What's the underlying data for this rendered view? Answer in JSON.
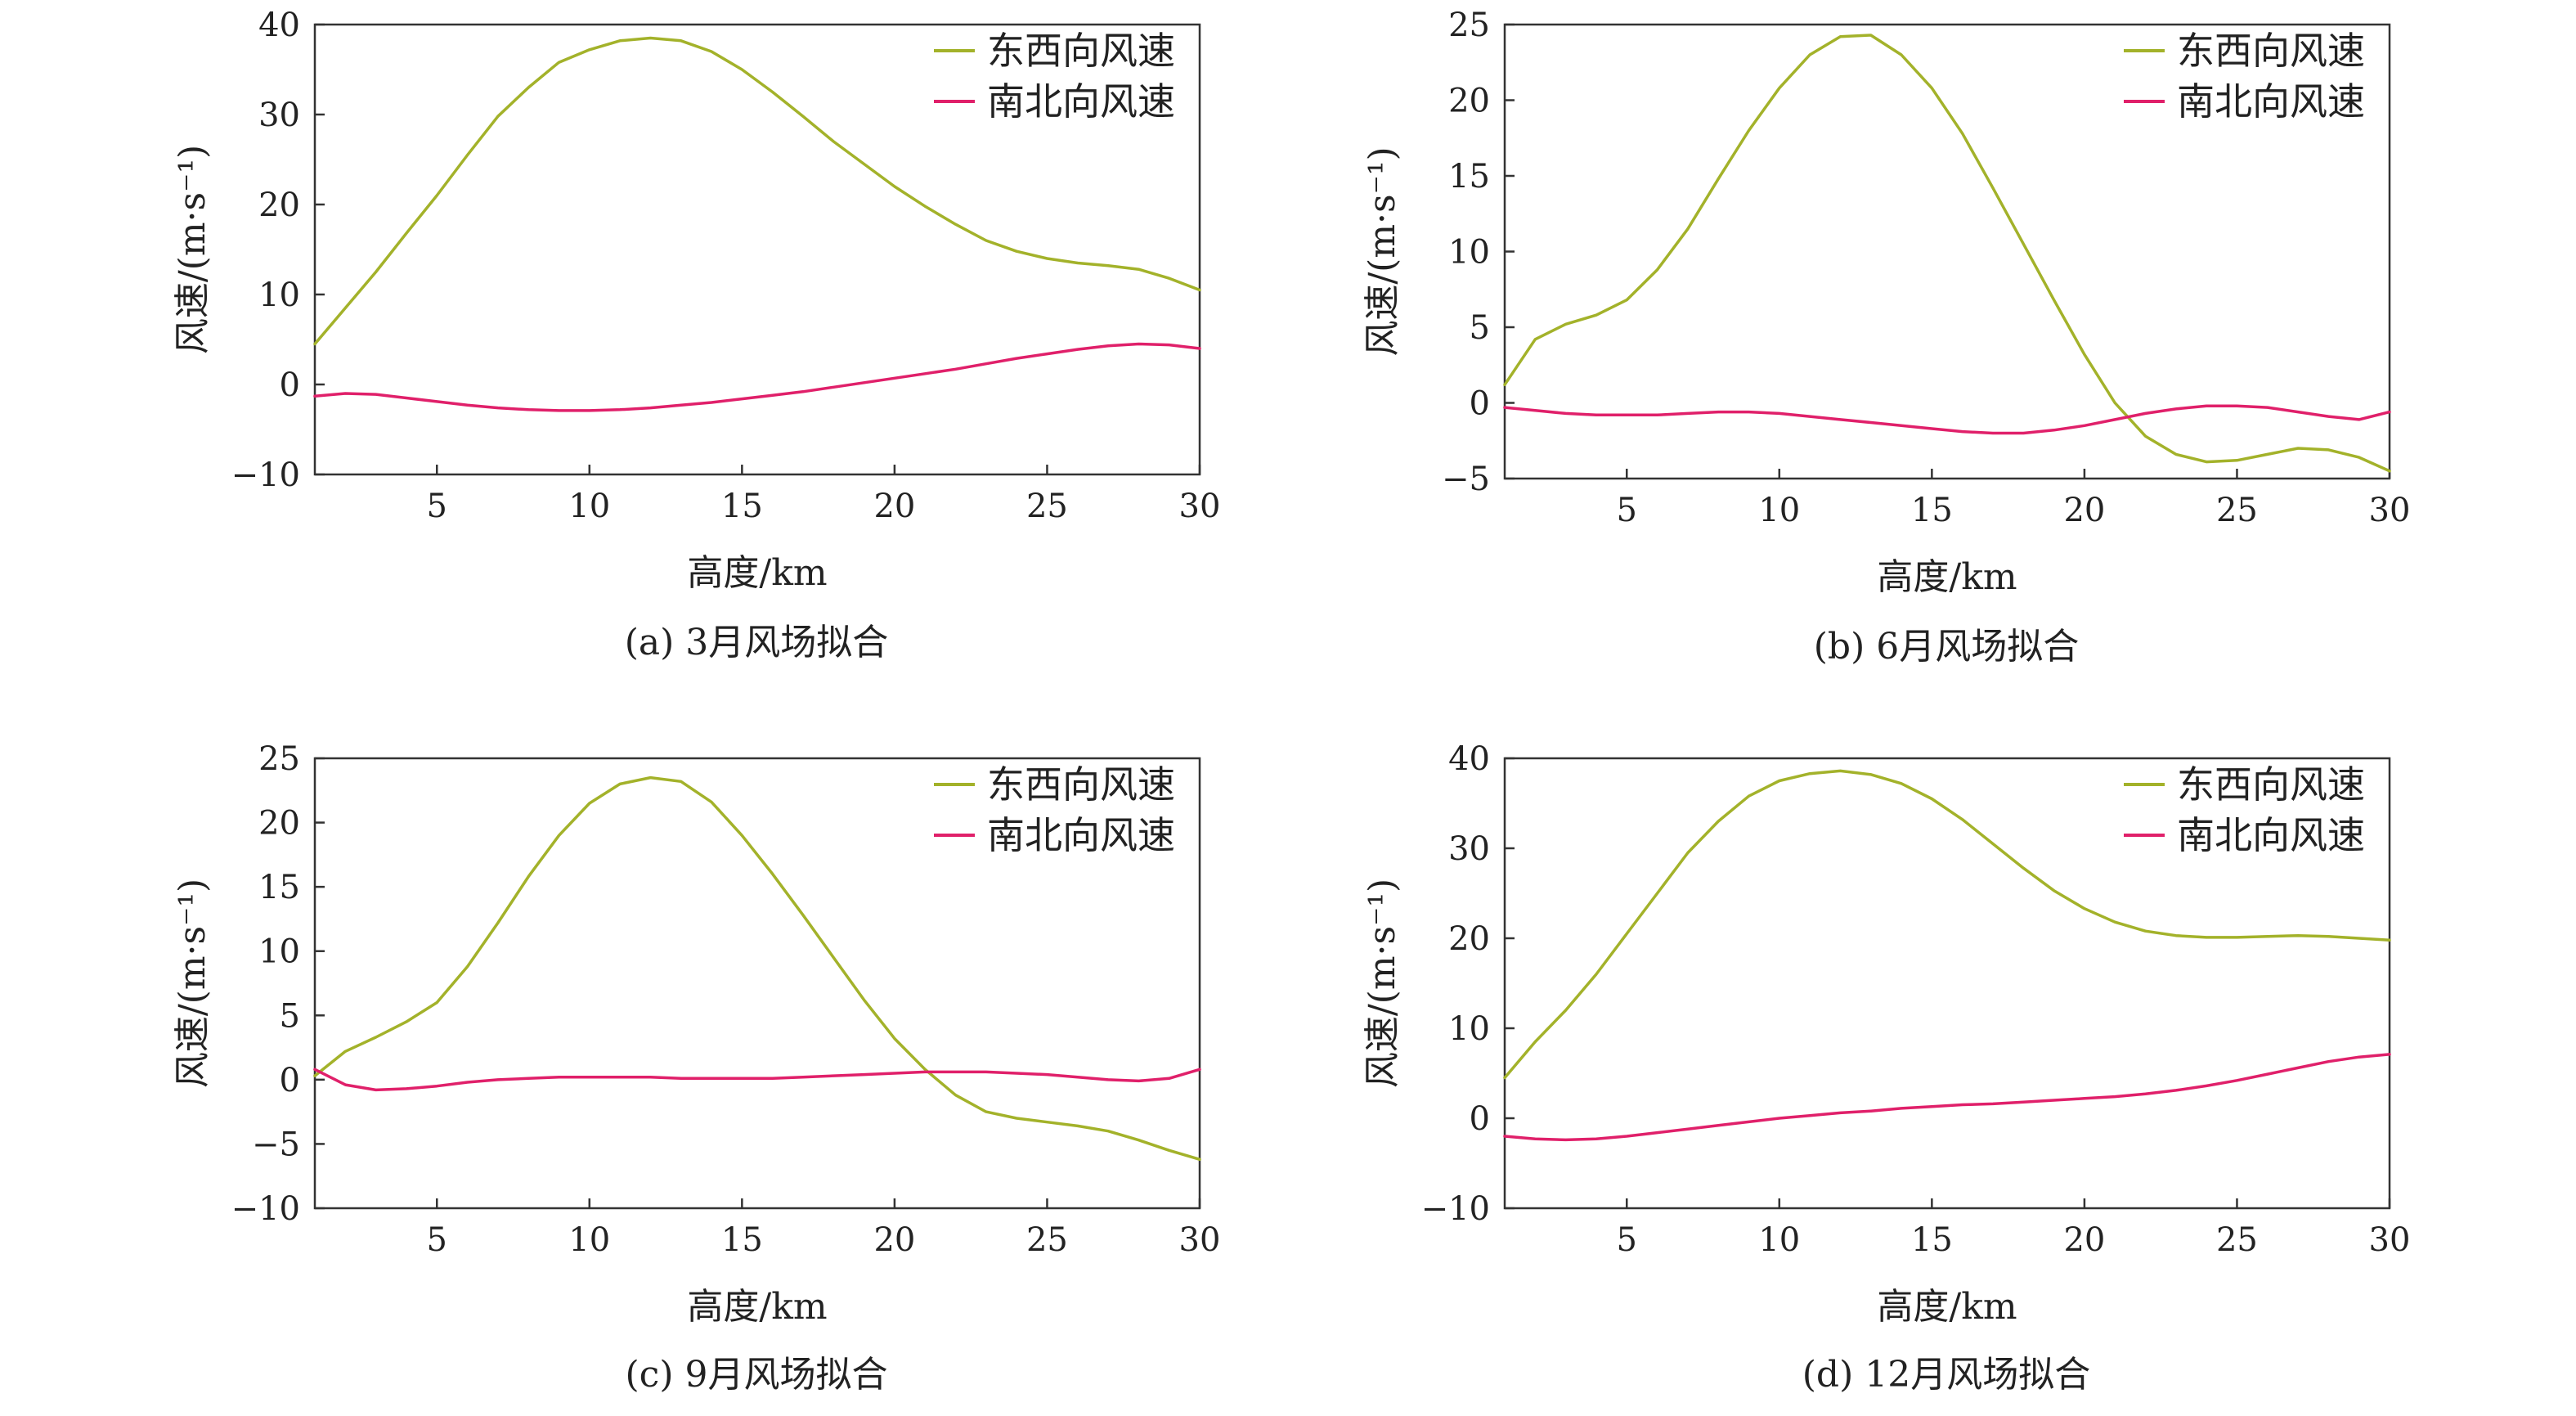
{
  "colors": {
    "ew": "#a3b22a",
    "ns": "#e0206a"
  },
  "chart_data": [
    {
      "type": "line",
      "caption": "(a) 3月风场拟合",
      "xlabel": "高度/km",
      "ylabel": "风速/(m·s⁻¹)",
      "xlim": [
        1,
        30
      ],
      "ylim": [
        -10,
        40
      ],
      "xticks": [
        5,
        10,
        15,
        20,
        25,
        30
      ],
      "yticks": [
        -10,
        0,
        10,
        20,
        30,
        40
      ],
      "legend_position": "top-right",
      "series": [
        {
          "name": "东西向风速",
          "color_key": "ew",
          "x": [
            1,
            2,
            3,
            4,
            5,
            6,
            7,
            8,
            9,
            10,
            11,
            12,
            13,
            14,
            15,
            16,
            17,
            18,
            19,
            20,
            21,
            22,
            23,
            24,
            25,
            26,
            27,
            28,
            29,
            30
          ],
          "y": [
            4.5,
            8.5,
            12.5,
            16.8,
            21,
            25.5,
            29.8,
            33,
            35.8,
            37.2,
            38.2,
            38.5,
            38.2,
            37,
            35,
            32.5,
            29.8,
            27,
            24.5,
            22,
            19.8,
            17.8,
            16,
            14.8,
            14,
            13.5,
            13.2,
            12.8,
            11.8,
            10.5
          ]
        },
        {
          "name": "南北向风速",
          "color_key": "ns",
          "x": [
            1,
            2,
            3,
            4,
            5,
            6,
            7,
            8,
            9,
            10,
            11,
            12,
            13,
            14,
            15,
            16,
            17,
            18,
            19,
            20,
            21,
            22,
            23,
            24,
            25,
            26,
            27,
            28,
            29,
            30
          ],
          "y": [
            -1.3,
            -1,
            -1.1,
            -1.5,
            -1.9,
            -2.3,
            -2.6,
            -2.8,
            -2.9,
            -2.9,
            -2.8,
            -2.6,
            -2.3,
            -2,
            -1.6,
            -1.2,
            -0.8,
            -0.3,
            0.2,
            0.7,
            1.2,
            1.7,
            2.3,
            2.9,
            3.4,
            3.9,
            4.3,
            4.5,
            4.4,
            4
          ]
        }
      ]
    },
    {
      "type": "line",
      "caption": "(b) 6月风场拟合",
      "xlabel": "高度/km",
      "ylabel": "风速/(m·s⁻¹)",
      "xlim": [
        1,
        30
      ],
      "ylim": [
        -5,
        25
      ],
      "xticks": [
        5,
        10,
        15,
        20,
        25,
        30
      ],
      "yticks": [
        -5,
        0,
        5,
        10,
        15,
        20,
        25
      ],
      "legend_position": "top-right",
      "series": [
        {
          "name": "东西向风速",
          "color_key": "ew",
          "x": [
            1,
            2,
            3,
            4,
            5,
            6,
            7,
            8,
            9,
            10,
            11,
            12,
            13,
            14,
            15,
            16,
            17,
            18,
            19,
            20,
            21,
            22,
            23,
            24,
            25,
            26,
            27,
            28,
            29,
            30
          ],
          "y": [
            1.2,
            4.2,
            5.2,
            5.8,
            6.8,
            8.8,
            11.5,
            14.8,
            18,
            20.8,
            23,
            24.2,
            24.3,
            23,
            20.8,
            17.8,
            14.2,
            10.5,
            6.8,
            3.2,
            0,
            -2.2,
            -3.4,
            -3.9,
            -3.8,
            -3.4,
            -3,
            -3.1,
            -3.6,
            -4.5
          ]
        },
        {
          "name": "南北向风速",
          "color_key": "ns",
          "x": [
            1,
            2,
            3,
            4,
            5,
            6,
            7,
            8,
            9,
            10,
            11,
            12,
            13,
            14,
            15,
            16,
            17,
            18,
            19,
            20,
            21,
            22,
            23,
            24,
            25,
            26,
            27,
            28,
            29,
            30
          ],
          "y": [
            -0.3,
            -0.5,
            -0.7,
            -0.8,
            -0.8,
            -0.8,
            -0.7,
            -0.6,
            -0.6,
            -0.7,
            -0.9,
            -1.1,
            -1.3,
            -1.5,
            -1.7,
            -1.9,
            -2,
            -2,
            -1.8,
            -1.5,
            -1.1,
            -0.7,
            -0.4,
            -0.2,
            -0.2,
            -0.3,
            -0.6,
            -0.9,
            -1.1,
            -0.6
          ]
        }
      ]
    },
    {
      "type": "line",
      "caption": "(c) 9月风场拟合",
      "xlabel": "高度/km",
      "ylabel": "风速/(m·s⁻¹)",
      "xlim": [
        1,
        30
      ],
      "ylim": [
        -10,
        25
      ],
      "xticks": [
        5,
        10,
        15,
        20,
        25,
        30
      ],
      "yticks": [
        -10,
        -5,
        0,
        5,
        10,
        15,
        20,
        25
      ],
      "legend_position": "top-right",
      "series": [
        {
          "name": "东西向风速",
          "color_key": "ew",
          "x": [
            1,
            2,
            3,
            4,
            5,
            6,
            7,
            8,
            9,
            10,
            11,
            12,
            13,
            14,
            15,
            16,
            17,
            18,
            19,
            20,
            21,
            22,
            23,
            24,
            25,
            26,
            27,
            28,
            29,
            30
          ],
          "y": [
            0.3,
            2.2,
            3.3,
            4.5,
            6,
            8.8,
            12.2,
            15.8,
            19,
            21.5,
            23,
            23.5,
            23.2,
            21.6,
            19,
            16,
            12.8,
            9.5,
            6.2,
            3.2,
            0.8,
            -1.2,
            -2.5,
            -3,
            -3.3,
            -3.6,
            -4,
            -4.7,
            -5.5,
            -6.2
          ]
        },
        {
          "name": "南北向风速",
          "color_key": "ns",
          "x": [
            1,
            2,
            3,
            4,
            5,
            6,
            7,
            8,
            9,
            10,
            11,
            12,
            13,
            14,
            15,
            16,
            17,
            18,
            19,
            20,
            21,
            22,
            23,
            24,
            25,
            26,
            27,
            28,
            29,
            30
          ],
          "y": [
            0.8,
            -0.4,
            -0.8,
            -0.7,
            -0.5,
            -0.2,
            0,
            0.1,
            0.2,
            0.2,
            0.2,
            0.2,
            0.1,
            0.1,
            0.1,
            0.1,
            0.2,
            0.3,
            0.4,
            0.5,
            0.6,
            0.6,
            0.6,
            0.5,
            0.4,
            0.2,
            0,
            -0.1,
            0.1,
            0.8
          ]
        }
      ]
    },
    {
      "type": "line",
      "caption": "(d) 12月风场拟合",
      "xlabel": "高度/km",
      "ylabel": "风速/(m·s⁻¹)",
      "xlim": [
        1,
        30
      ],
      "ylim": [
        -10,
        40
      ],
      "xticks": [
        5,
        10,
        15,
        20,
        25,
        30
      ],
      "yticks": [
        -10,
        0,
        10,
        20,
        30,
        40
      ],
      "legend_position": "top-right",
      "series": [
        {
          "name": "东西向风速",
          "color_key": "ew",
          "x": [
            1,
            2,
            3,
            4,
            5,
            6,
            7,
            8,
            9,
            10,
            11,
            12,
            13,
            14,
            15,
            16,
            17,
            18,
            19,
            20,
            21,
            22,
            23,
            24,
            25,
            26,
            27,
            28,
            29,
            30
          ],
          "y": [
            4.5,
            8.5,
            12,
            16,
            20.5,
            25,
            29.5,
            33,
            35.8,
            37.5,
            38.3,
            38.6,
            38.2,
            37.2,
            35.5,
            33.2,
            30.5,
            27.8,
            25.3,
            23.3,
            21.8,
            20.8,
            20.3,
            20.1,
            20.1,
            20.2,
            20.3,
            20.2,
            20,
            19.8
          ]
        },
        {
          "name": "南北向风速",
          "color_key": "ns",
          "x": [
            1,
            2,
            3,
            4,
            5,
            6,
            7,
            8,
            9,
            10,
            11,
            12,
            13,
            14,
            15,
            16,
            17,
            18,
            19,
            20,
            21,
            22,
            23,
            24,
            25,
            26,
            27,
            28,
            29,
            30
          ],
          "y": [
            -2,
            -2.3,
            -2.4,
            -2.3,
            -2,
            -1.6,
            -1.2,
            -0.8,
            -0.4,
            0,
            0.3,
            0.6,
            0.8,
            1.1,
            1.3,
            1.5,
            1.6,
            1.8,
            2,
            2.2,
            2.4,
            2.7,
            3.1,
            3.6,
            4.2,
            4.9,
            5.6,
            6.3,
            6.8,
            7.1
          ]
        }
      ]
    }
  ]
}
